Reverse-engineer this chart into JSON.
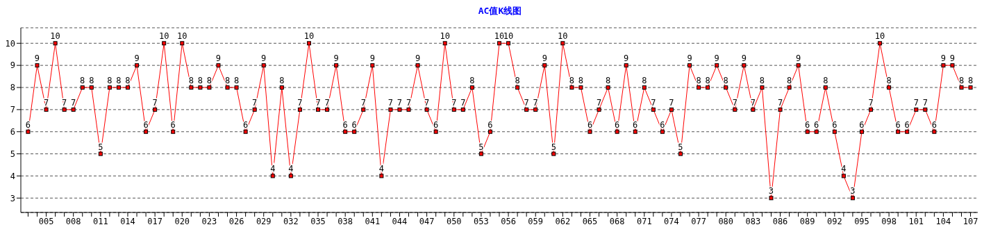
{
  "chart_data": {
    "type": "line",
    "title": "AC值K线图",
    "categories": [
      null,
      null,
      "005",
      null,
      null,
      "008",
      null,
      null,
      "011",
      null,
      null,
      "014",
      null,
      null,
      "017",
      null,
      null,
      "020",
      null,
      null,
      "023",
      null,
      null,
      "026",
      null,
      null,
      "029",
      null,
      null,
      "032",
      null,
      null,
      "035",
      null,
      null,
      "038",
      null,
      null,
      "041",
      null,
      null,
      "044",
      null,
      null,
      "047",
      null,
      null,
      "050",
      null,
      null,
      "053",
      null,
      null,
      "056",
      null,
      null,
      "059",
      null,
      null,
      "062",
      null,
      null,
      "065",
      null,
      null,
      "068",
      null,
      null,
      "071",
      null,
      null,
      "074",
      null,
      null,
      "077",
      null,
      null,
      "080",
      null,
      null,
      "083",
      null,
      null,
      "086",
      null,
      null,
      "089",
      null,
      null,
      "092",
      null,
      null,
      "095",
      null,
      null,
      "098",
      null,
      null,
      "101",
      null,
      null,
      "104",
      null,
      null,
      "107"
    ],
    "series": [
      {
        "color": "#ff0000",
        "values": [
          6,
          9,
          7,
          10,
          7,
          7,
          8,
          8,
          5,
          8,
          8,
          8,
          9,
          6,
          7,
          10,
          6,
          10,
          8,
          8,
          8,
          9,
          8,
          8,
          6,
          7,
          9,
          4,
          8,
          4,
          7,
          10,
          7,
          7,
          9,
          6,
          6,
          7,
          9,
          4,
          7,
          7,
          7,
          9,
          7,
          6,
          10,
          7,
          7,
          8,
          5,
          6,
          10,
          10,
          8,
          7,
          7,
          9,
          5,
          10,
          8,
          8,
          6,
          7,
          8,
          6,
          9,
          6,
          8,
          7,
          6,
          7,
          5,
          9,
          8,
          8,
          9,
          8,
          7,
          9,
          7,
          8,
          3,
          7,
          8,
          9,
          6,
          6,
          8,
          6,
          4,
          3,
          6,
          7,
          10,
          8,
          6,
          6,
          7,
          7,
          6,
          9,
          9,
          8,
          8
        ]
      }
    ],
    "ylim": [
      2.35,
      10.7
    ],
    "yticks": [
      3,
      4,
      5,
      6,
      7,
      8,
      9,
      10
    ],
    "grid": "y",
    "marker": "square",
    "data_labels": true
  }
}
